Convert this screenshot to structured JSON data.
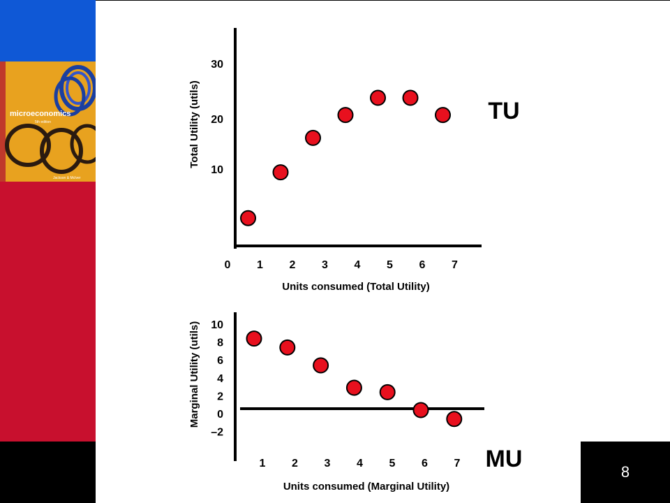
{
  "slide": {
    "page_number": "8",
    "cover_title": "microeconomics",
    "cover_edition": "5th edition",
    "cover_authors": "Jackson & McIver",
    "colors": {
      "blue": "#0f58d6",
      "red": "#c8102e",
      "marker": "#e8101e",
      "cover": "#e89a1c"
    }
  },
  "chart_data": [
    {
      "type": "scatter",
      "label": "TU",
      "xlabel": "Units consumed (Total Utility)",
      "ylabel": "Total Utility (utils)",
      "x_ticks": [
        "0",
        "1",
        "2",
        "3",
        "4",
        "5",
        "6",
        "7"
      ],
      "y_ticks": [
        "10",
        "20",
        "30"
      ],
      "xlim": [
        0,
        7
      ],
      "ylim": [
        0,
        30
      ],
      "points": [
        {
          "x": 1,
          "y": 4
        },
        {
          "x": 2,
          "y": 12
        },
        {
          "x": 3,
          "y": 18
        },
        {
          "x": 4,
          "y": 22
        },
        {
          "x": 5,
          "y": 25
        },
        {
          "x": 6,
          "y": 25
        },
        {
          "x": 7,
          "y": 22
        }
      ],
      "grid": false
    },
    {
      "type": "scatter",
      "label": "MU",
      "xlabel": "Units consumed (Marginal Utility)",
      "ylabel": "Marginal Utility (utils)",
      "x_ticks": [
        "1",
        "2",
        "3",
        "4",
        "5",
        "6",
        "7"
      ],
      "y_ticks": [
        "10",
        "8",
        "6",
        "4",
        "2",
        "0",
        "–2"
      ],
      "xlim": [
        1,
        7
      ],
      "ylim": [
        -2,
        10
      ],
      "points": [
        {
          "x": 1,
          "y": 8
        },
        {
          "x": 2,
          "y": 7
        },
        {
          "x": 3,
          "y": 5
        },
        {
          "x": 4,
          "y": 2.5
        },
        {
          "x": 5,
          "y": 2
        },
        {
          "x": 6,
          "y": 0
        },
        {
          "x": 7,
          "y": -1
        }
      ],
      "grid": false
    }
  ]
}
